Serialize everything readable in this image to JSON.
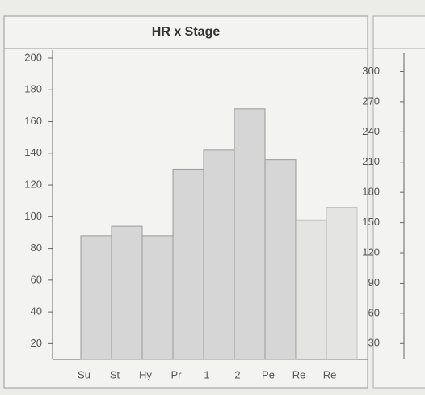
{
  "chart_data": [
    {
      "type": "bar",
      "title": "HR x Stage",
      "categories": [
        "Su",
        "St",
        "Hy",
        "Pr",
        "1",
        "2",
        "Pe",
        "Re",
        "Re"
      ],
      "values": [
        88,
        94,
        88,
        130,
        142,
        168,
        136,
        98,
        106
      ],
      "color": "#d6d6d6",
      "ylim": [
        10,
        200
      ],
      "yticks": [
        20,
        40,
        60,
        80,
        100,
        120,
        140,
        160,
        180,
        200
      ]
    },
    {
      "type": "bar",
      "ylim": [
        15,
        310
      ],
      "yticks": [
        30,
        60,
        90,
        120,
        150,
        180,
        210,
        240,
        270,
        300
      ]
    }
  ]
}
